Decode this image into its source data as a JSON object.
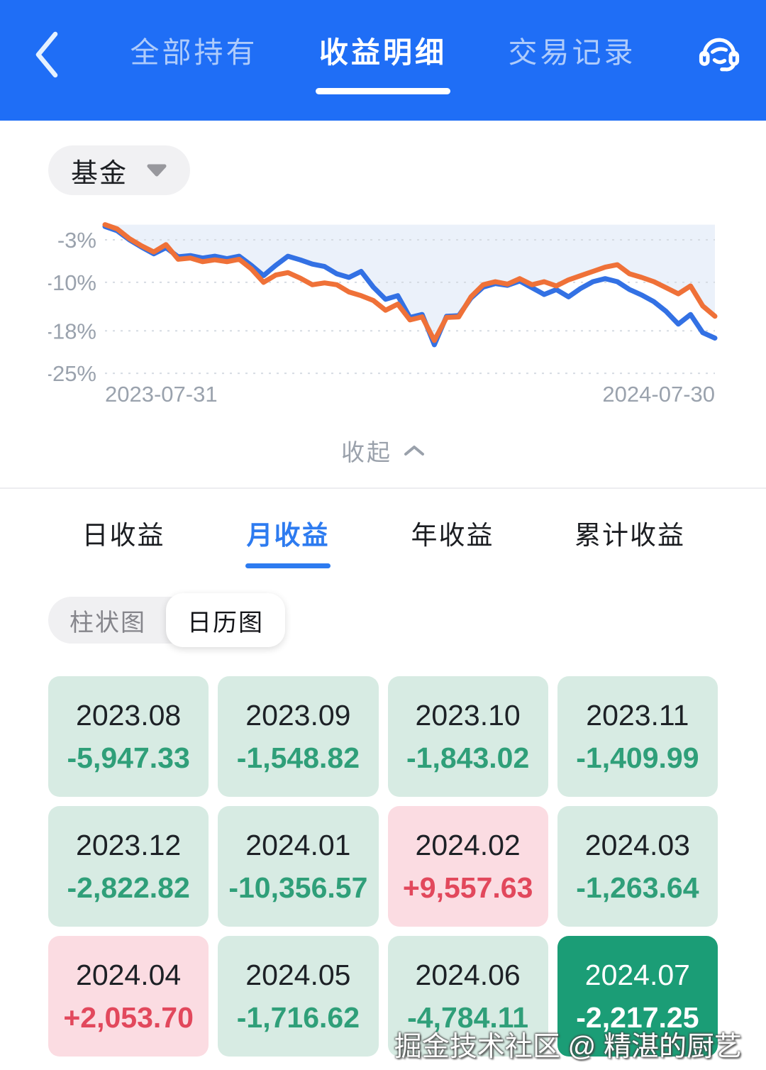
{
  "header": {
    "tabs": [
      {
        "label": "全部持有",
        "active": false
      },
      {
        "label": "收益明细",
        "active": true
      },
      {
        "label": "交易记录",
        "active": false
      }
    ],
    "icons": {
      "back": "chevron-left",
      "support": "headset"
    }
  },
  "filter_pill": {
    "label": "基金",
    "icon": "caret-down"
  },
  "chart_data": {
    "type": "line",
    "title": "",
    "x_axis": {
      "start_label": "2023-07-31",
      "end_label": "2024-07-30"
    },
    "y_axis": {
      "tick_labels": [
        "-3%",
        "-10%",
        "-18%",
        "-25%"
      ],
      "ticks": [
        -3,
        -10,
        -18,
        -25
      ],
      "unit": "%"
    },
    "ylim": [
      -26.5,
      0
    ],
    "grid": "horizontal-dotted",
    "legend": "none",
    "area_fill": {
      "color": "#e9effa",
      "applies": "above-upper-series"
    },
    "series": [
      {
        "name": "series-blue",
        "color": "#3371e4",
        "values": [
          -0.8,
          -1.5,
          -3.0,
          -4.2,
          -5.3,
          -4.3,
          -5.8,
          -5.6,
          -6.0,
          -5.7,
          -6.1,
          -5.7,
          -7.2,
          -8.9,
          -7.2,
          -5.7,
          -6.3,
          -7.0,
          -7.4,
          -8.6,
          -9.2,
          -8.2,
          -10.8,
          -12.8,
          -12.2,
          -15.8,
          -15.3,
          -20.3,
          -15.6,
          -15.5,
          -12.6,
          -10.8,
          -10.2,
          -10.5,
          -9.8,
          -10.9,
          -12.0,
          -11.2,
          -12.4,
          -11.0,
          -9.9,
          -9.4,
          -9.9,
          -11.2,
          -12.1,
          -13.2,
          -14.8,
          -16.9,
          -15.3,
          -18.3,
          -19.2
        ]
      },
      {
        "name": "series-orange",
        "color": "#ef7138",
        "values": [
          -0.5,
          -1.2,
          -2.8,
          -4.0,
          -5.0,
          -3.8,
          -6.2,
          -6.0,
          -6.6,
          -6.3,
          -6.6,
          -6.2,
          -7.8,
          -10.0,
          -8.8,
          -8.4,
          -9.3,
          -10.4,
          -10.1,
          -10.4,
          -11.6,
          -12.2,
          -13.0,
          -14.6,
          -13.6,
          -16.2,
          -15.7,
          -19.6,
          -15.8,
          -15.7,
          -12.4,
          -10.4,
          -9.9,
          -10.3,
          -9.4,
          -10.4,
          -9.9,
          -10.6,
          -9.6,
          -8.9,
          -8.2,
          -7.5,
          -7.1,
          -8.6,
          -9.2,
          -9.9,
          -10.9,
          -11.9,
          -10.6,
          -13.9,
          -15.6
        ]
      }
    ]
  },
  "collapse": {
    "label": "收起",
    "icon": "chevron-up"
  },
  "period_tabs": {
    "items": [
      {
        "label": "日收益",
        "active": false
      },
      {
        "label": "月收益",
        "active": true
      },
      {
        "label": "年收益",
        "active": false
      },
      {
        "label": "累计收益",
        "active": false
      }
    ]
  },
  "view_toggle": {
    "options": [
      {
        "label": "柱状图",
        "selected": false
      },
      {
        "label": "日历图",
        "selected": true
      }
    ]
  },
  "calendar": {
    "months": [
      {
        "month": "2023.08",
        "value": "-5,947.33",
        "state": "loss"
      },
      {
        "month": "2023.09",
        "value": "-1,548.82",
        "state": "loss"
      },
      {
        "month": "2023.10",
        "value": "-1,843.02",
        "state": "loss"
      },
      {
        "month": "2023.11",
        "value": "-1,409.99",
        "state": "loss"
      },
      {
        "month": "2023.12",
        "value": "-2,822.82",
        "state": "loss"
      },
      {
        "month": "2024.01",
        "value": "-10,356.57",
        "state": "loss"
      },
      {
        "month": "2024.02",
        "value": "+9,557.63",
        "state": "gain"
      },
      {
        "month": "2024.03",
        "value": "-1,263.64",
        "state": "loss"
      },
      {
        "month": "2024.04",
        "value": "+2,053.70",
        "state": "gain"
      },
      {
        "month": "2024.05",
        "value": "-1,716.62",
        "state": "loss"
      },
      {
        "month": "2024.06",
        "value": "-4,784.11",
        "state": "loss"
      },
      {
        "month": "2024.07",
        "value": "-2,217.25",
        "state": "current"
      }
    ]
  },
  "watermark": {
    "text": "掘金技术社区 @ 精湛的厨艺"
  },
  "colors": {
    "header_bg": "#1f6ef6",
    "accent_blue": "#2d7bf0",
    "line_blue": "#3371e4",
    "line_orange": "#ef7138",
    "loss_bg": "#d7ebe3",
    "loss_text": "#2f9f79",
    "gain_bg": "#fbdce2",
    "gain_text": "#e2485c",
    "current_bg": "#1b9d76",
    "axis_text": "#9aa2ad"
  }
}
